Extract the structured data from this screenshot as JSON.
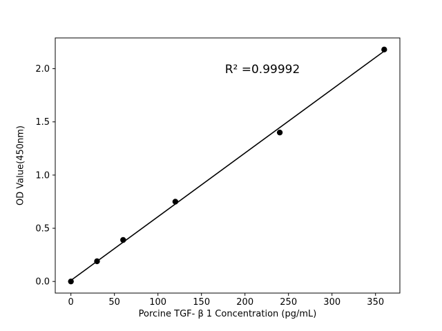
{
  "chart_data": {
    "type": "scatter",
    "title": "",
    "xlabel": "Porcine TGF- β 1 Concentration (pg/mL)",
    "ylabel": "OD Value(450nm)",
    "annotation": "R² =0.99992",
    "x": [
      0,
      30,
      60,
      120,
      240,
      360
    ],
    "y": [
      0.0,
      0.19,
      0.39,
      0.75,
      1.4,
      2.18
    ],
    "fit_line": {
      "x": [
        0,
        360
      ],
      "y": [
        0.01,
        2.165
      ]
    },
    "xlim": [
      -18,
      378
    ],
    "ylim": [
      -0.109,
      2.289
    ],
    "xticks": [
      0,
      50,
      100,
      150,
      200,
      250,
      300,
      350
    ],
    "xtick_labels": [
      "0",
      "50",
      "100",
      "150",
      "200",
      "250",
      "300",
      "350"
    ],
    "yticks": [
      0.0,
      0.5,
      1.0,
      1.5,
      2.0
    ],
    "ytick_labels": [
      "0.0",
      "0.5",
      "1.0",
      "1.5",
      "2.0"
    ],
    "grid": false,
    "legend": false,
    "marker_color": "#000000",
    "line_color": "#000000",
    "axis_color": "#000000",
    "background": "#ffffff"
  }
}
